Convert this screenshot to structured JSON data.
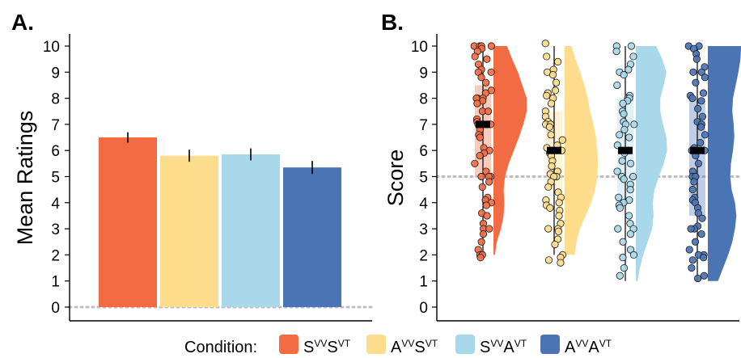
{
  "colors": {
    "c1": "#f26b43",
    "c2": "#fddc8c",
    "c3": "#a8d8ea",
    "c4": "#4a74b4",
    "grid_dotted": "#bdbdbd"
  },
  "legend": {
    "label": "Condition:",
    "items": [
      {
        "main1": "S",
        "sup1": "VV",
        "main2": "S",
        "sup2": "VT",
        "color": "#f26b43"
      },
      {
        "main1": "A",
        "sup1": "VV",
        "main2": "S",
        "sup2": "VT",
        "color": "#fddc8c"
      },
      {
        "main1": "S",
        "sup1": "VV",
        "main2": "A",
        "sup2": "VT",
        "color": "#a8d8ea"
      },
      {
        "main1": "A",
        "sup1": "VV",
        "main2": "A",
        "sup2": "VT",
        "color": "#4a74b4"
      }
    ]
  },
  "chart_data": [
    {
      "type": "bar",
      "panel_label": "A.",
      "title": "",
      "xlabel": "",
      "ylabel": "Mean Ratings",
      "categories": [
        "SVVSVT",
        "AVVSVT",
        "SVVAVT",
        "AVVAVT"
      ],
      "values": [
        6.5,
        5.8,
        5.85,
        5.35
      ],
      "error": [
        0.2,
        0.23,
        0.23,
        0.25
      ],
      "ylim": [
        0,
        10.2
      ],
      "yticks": [
        0,
        1,
        2,
        3,
        4,
        5,
        6,
        7,
        8,
        9,
        10
      ],
      "reference_line": 0,
      "grid": false
    },
    {
      "type": "scatter",
      "subtype": "raincloud",
      "panel_label": "B.",
      "title": "",
      "xlabel": "",
      "ylabel": "Score",
      "categories": [
        "SVVSVT",
        "AVVSVT",
        "SVVAVT",
        "AVVAVT"
      ],
      "ylim": [
        -0.3,
        10.3
      ],
      "yticks": [
        0,
        1,
        2,
        3,
        4,
        5,
        6,
        7,
        8,
        9,
        10
      ],
      "reference_line": 5,
      "grid": false,
      "series": [
        {
          "medians": 7,
          "range": [
            2,
            10
          ],
          "box": [
            5,
            8.5
          ],
          "density": [
            [
              2,
              0.04
            ],
            [
              2.5,
              0.1
            ],
            [
              3,
              0.22
            ],
            [
              3.5,
              0.3
            ],
            [
              4,
              0.32
            ],
            [
              4.5,
              0.3
            ],
            [
              5,
              0.34
            ],
            [
              5.5,
              0.45
            ],
            [
              6,
              0.6
            ],
            [
              6.5,
              0.75
            ],
            [
              7,
              0.88
            ],
            [
              7.5,
              0.98
            ],
            [
              8,
              0.98
            ],
            [
              8.5,
              0.85
            ],
            [
              9,
              0.72
            ],
            [
              9.5,
              0.55
            ],
            [
              10,
              0.4
            ]
          ],
          "points": [
            10,
            10,
            10,
            10,
            9.9,
            9.8,
            9.6,
            9.5,
            9.3,
            9.1,
            9,
            9,
            8.8,
            8.6,
            8.3,
            8.2,
            8,
            8,
            8,
            7.9,
            7.8,
            7.5,
            7.5,
            7.2,
            7.1,
            7,
            7,
            7,
            6.8,
            6.6,
            6.5,
            6.1,
            6,
            5.9,
            5.8,
            5.5,
            5.2,
            5,
            5,
            5,
            4.8,
            4.6,
            4.2,
            4.1,
            4,
            3.9,
            3.6,
            3.5,
            3.2,
            3,
            3,
            2.8,
            2.5,
            2.2,
            2,
            2,
            1.9
          ]
        },
        {
          "medians": 6,
          "range": [
            2,
            10
          ],
          "box": [
            4.5,
            7.5
          ],
          "density": [
            [
              2,
              0.3
            ],
            [
              2.5,
              0.35
            ],
            [
              3,
              0.45
            ],
            [
              3.5,
              0.62
            ],
            [
              4,
              0.78
            ],
            [
              4.5,
              0.9
            ],
            [
              5,
              0.96
            ],
            [
              5.5,
              0.98
            ],
            [
              6,
              0.96
            ],
            [
              6.5,
              0.92
            ],
            [
              7,
              0.85
            ],
            [
              7.5,
              0.75
            ],
            [
              8,
              0.68
            ],
            [
              8.5,
              0.58
            ],
            [
              9,
              0.46
            ],
            [
              9.5,
              0.32
            ],
            [
              10,
              0.2
            ]
          ],
          "points": [
            10.1,
            9.6,
            9.4,
            9.1,
            9,
            8.9,
            8.6,
            8.3,
            8.2,
            8.1,
            8,
            7.8,
            7.5,
            7.3,
            7.1,
            7,
            7,
            6.9,
            6.6,
            6.4,
            6.2,
            6.1,
            6,
            6,
            5.9,
            5.8,
            5.6,
            5.4,
            5.2,
            5.1,
            5,
            5,
            4.8,
            4.6,
            4.4,
            4.2,
            4.1,
            4,
            3.9,
            3.8,
            3.7,
            3.5,
            3.2,
            3,
            3,
            2.9,
            2.6,
            2.4,
            2,
            1.9,
            1.8,
            1.7
          ]
        },
        {
          "medians": 6,
          "range": [
            1,
            10
          ],
          "box": [
            4,
            8
          ],
          "density": [
            [
              1,
              0.05
            ],
            [
              1.5,
              0.12
            ],
            [
              2,
              0.22
            ],
            [
              2.5,
              0.35
            ],
            [
              3,
              0.48
            ],
            [
              3.5,
              0.52
            ],
            [
              4,
              0.5
            ],
            [
              4.5,
              0.55
            ],
            [
              5,
              0.68
            ],
            [
              5.5,
              0.82
            ],
            [
              6,
              0.92
            ],
            [
              6.5,
              0.9
            ],
            [
              7,
              0.8
            ],
            [
              7.5,
              0.72
            ],
            [
              8,
              0.72
            ],
            [
              8.5,
              0.82
            ],
            [
              9,
              0.9
            ],
            [
              9.5,
              0.78
            ],
            [
              10,
              0.6
            ]
          ],
          "points": [
            10,
            10,
            9.8,
            9.6,
            9.3,
            9.1,
            9,
            8.9,
            8.5,
            8.1,
            8,
            8,
            7.9,
            7.8,
            7.5,
            7.4,
            7.1,
            7,
            7,
            6.8,
            6.6,
            6.5,
            6.2,
            6,
            6,
            5.9,
            5.6,
            5.5,
            5.2,
            5,
            5,
            4.9,
            4.7,
            4.5,
            4.2,
            4.1,
            4,
            3.9,
            3.8,
            3.5,
            3.2,
            3,
            3,
            2.8,
            2.5,
            2.2,
            2,
            1.9,
            1.5,
            1.2
          ]
        },
        {
          "medians": 6,
          "range": [
            1,
            10
          ],
          "box": [
            3.5,
            8
          ],
          "density": [
            [
              1,
              0.3
            ],
            [
              1.5,
              0.45
            ],
            [
              2,
              0.6
            ],
            [
              2.5,
              0.72
            ],
            [
              3,
              0.8
            ],
            [
              3.5,
              0.84
            ],
            [
              4,
              0.8
            ],
            [
              4.5,
              0.7
            ],
            [
              5,
              0.66
            ],
            [
              5.5,
              0.68
            ],
            [
              6,
              0.74
            ],
            [
              6.5,
              0.78
            ],
            [
              7,
              0.76
            ],
            [
              7.5,
              0.72
            ],
            [
              8,
              0.74
            ],
            [
              8.5,
              0.82
            ],
            [
              9,
              0.9
            ],
            [
              9.5,
              0.96
            ],
            [
              10,
              0.98
            ]
          ],
          "points": [
            10,
            10,
            9.9,
            9.7,
            9.5,
            9.2,
            9,
            9,
            8.8,
            8.6,
            8.2,
            8.1,
            8,
            7.9,
            7.6,
            7.3,
            7.1,
            7,
            6.9,
            6.6,
            6.3,
            6.1,
            6,
            6,
            5.8,
            5.5,
            5.2,
            5,
            5,
            4.8,
            4.5,
            4.2,
            4.1,
            4,
            3.8,
            3.6,
            3.4,
            3.1,
            3,
            3,
            2.8,
            2.5,
            2.2,
            2,
            2,
            1.9,
            1.8,
            1.5,
            1.2,
            1.1
          ]
        }
      ]
    }
  ]
}
